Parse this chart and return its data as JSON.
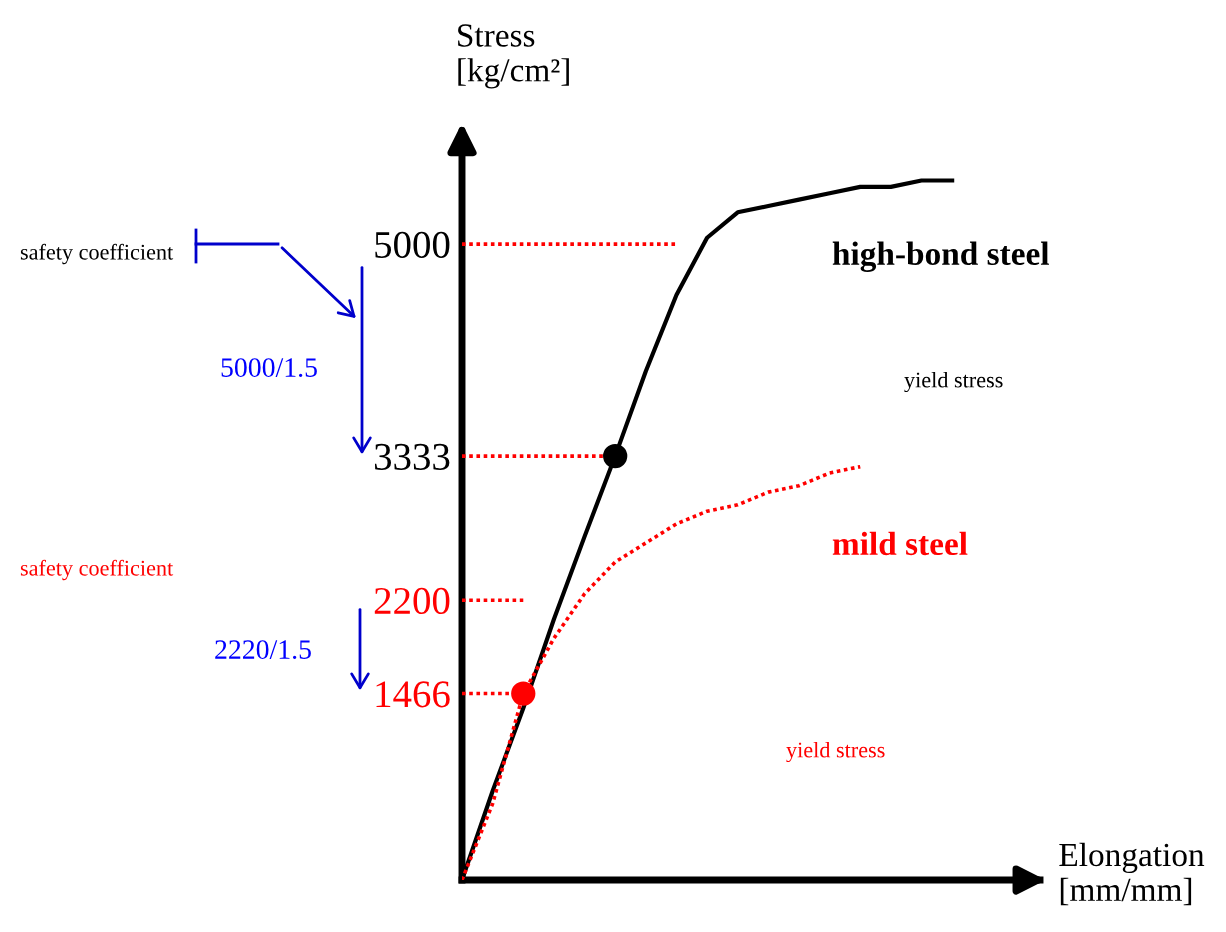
{
  "chart_data": {
    "type": "line",
    "xlabel": "Elongation\n[mm/mm]",
    "ylabel": "Stress\n[kg/cm²]",
    "categories": [
      null,
      null,
      null,
      null,
      null,
      null,
      null,
      null,
      null,
      null,
      null,
      null,
      null,
      null,
      null,
      null,
      null
    ],
    "ylim": [
      0,
      5740
    ],
    "yticks": [
      1466,
      2200,
      3333,
      5000
    ],
    "grid": false,
    "legend": false,
    "series": [
      {
        "name": "high-bond steel",
        "color": "#000000",
        "line_style": "solid",
        "values": [
          0,
          700,
          1350,
          2050,
          2700,
          3333,
          4000,
          4600,
          5050,
          5250,
          5300,
          5350,
          5400,
          5450,
          5450,
          5500,
          5500
        ]
      },
      {
        "name": "mild steel",
        "color": "#ff0000",
        "line_style": "dotted",
        "values": [
          0,
          600,
          1466,
          1900,
          2250,
          2500,
          2650,
          2800,
          2900,
          2950,
          3050,
          3100,
          3200,
          3250,
          null,
          null,
          null
        ]
      },
      {
        "type": "scatter",
        "color": "#000000",
        "marker": "circle",
        "values": [
          null,
          null,
          null,
          null,
          null,
          3333,
          null,
          null,
          null,
          null,
          null,
          null,
          null,
          null,
          null,
          null,
          null
        ]
      },
      {
        "type": "scatter",
        "color": "#ff0000",
        "marker": "circle",
        "values": [
          null,
          null,
          1466,
          null,
          null,
          null,
          null,
          null,
          null,
          null,
          null,
          null,
          null,
          null,
          null,
          null,
          null
        ]
      },
      {
        "color": "#ff0000",
        "line_style": "dotted",
        "values": [
          5000,
          5000,
          5000,
          5000,
          5000,
          5000,
          5000,
          5000,
          null,
          null,
          null,
          null,
          null,
          null,
          null,
          null,
          null
        ]
      },
      {
        "color": "#ff0000",
        "line_style": "dotted",
        "values": [
          3333,
          3333,
          3333,
          3333,
          3333,
          3333,
          null,
          null,
          null,
          null,
          null,
          null,
          null,
          null,
          null,
          null,
          null
        ]
      },
      {
        "color": "#ff0000",
        "line_style": "dotted",
        "values": [
          2200,
          2200,
          2200,
          null,
          null,
          null,
          null,
          null,
          null,
          null,
          null,
          null,
          null,
          null,
          null,
          null,
          null
        ]
      },
      {
        "color": "#ff0000",
        "line_style": "dotted",
        "values": [
          1466,
          1466,
          1466,
          null,
          null,
          null,
          null,
          null,
          null,
          null,
          null,
          null,
          null,
          null,
          null,
          null,
          null
        ]
      }
    ],
    "annotations": [
      "safety coefficient",
      "5000/1.5",
      "safety coefficient",
      "2220/1.5",
      "yield stress",
      "yield stress"
    ]
  }
}
